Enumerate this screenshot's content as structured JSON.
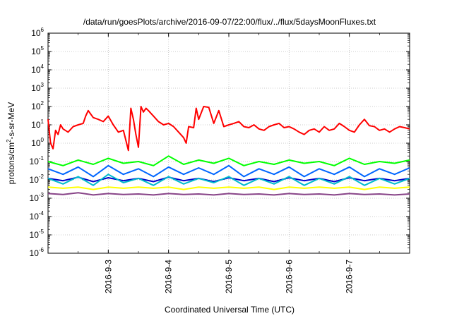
{
  "chart_data": {
    "type": "line",
    "title": "/data/run/goesPlots/archive/2016-09-07/22:00/flux/../flux/5daysMoonFluxes.txt",
    "xlabel": "Coordinated Universal Time (UTC)",
    "ylabel": "protons/cm2-s-sr-MeV",
    "ylabel_parts": {
      "before": "protons/cm",
      "sup": "2",
      "after": "-s-sr-MeV"
    },
    "yscale": "log",
    "ylim": [
      1e-06,
      1000000.0
    ],
    "xlim": [
      "2016-09-02 00:00",
      "2016-09-08 00:00"
    ],
    "xtick_labels": [
      "2016-9-3",
      "2016-9-4",
      "2016-9-5",
      "2016-9-6",
      "2016-9-7"
    ],
    "ytick_labels": [
      {
        "base": "10",
        "exp": "-6"
      },
      {
        "base": "10",
        "exp": "-5"
      },
      {
        "base": "10",
        "exp": "-4"
      },
      {
        "base": "10",
        "exp": "-3"
      },
      {
        "base": "10",
        "exp": "-2"
      },
      {
        "base": "10",
        "exp": "-1"
      },
      {
        "base": "10",
        "exp": "0"
      },
      {
        "base": "10",
        "exp": "1"
      },
      {
        "base": "10",
        "exp": "2"
      },
      {
        "base": "10",
        "exp": "3"
      },
      {
        "base": "10",
        "exp": "4"
      },
      {
        "base": "10",
        "exp": "5"
      },
      {
        "base": "10",
        "exp": "6"
      }
    ],
    "grid": true,
    "legend": "none",
    "series": [
      {
        "color": "#ff0000",
        "x": [
          "2016-09-02 00:00",
          "2016-09-02 01:00",
          "2016-09-02 02:00",
          "2016-09-02 03:00",
          "2016-09-02 04:00",
          "2016-09-02 05:00",
          "2016-09-02 06:00",
          "2016-09-02 08:00",
          "2016-09-02 10:00",
          "2016-09-02 12:00",
          "2016-09-02 14:00",
          "2016-09-02 15:00",
          "2016-09-02 16:00",
          "2016-09-02 18:00",
          "2016-09-02 20:00",
          "2016-09-02 22:00",
          "2016-09-03 00:00",
          "2016-09-03 02:00",
          "2016-09-03 04:00",
          "2016-09-03 06:00",
          "2016-09-03 08:00",
          "2016-09-03 09:00",
          "2016-09-03 10:00",
          "2016-09-03 11:00",
          "2016-09-03 12:00",
          "2016-09-03 13:00",
          "2016-09-03 14:00",
          "2016-09-03 15:00",
          "2016-09-03 16:00",
          "2016-09-03 18:00",
          "2016-09-03 20:00",
          "2016-09-03 22:00",
          "2016-09-04 00:00",
          "2016-09-04 02:00",
          "2016-09-04 04:00",
          "2016-09-04 06:00",
          "2016-09-04 07:00",
          "2016-09-04 08:00",
          "2016-09-04 10:00",
          "2016-09-04 11:00",
          "2016-09-04 12:00",
          "2016-09-04 14:00",
          "2016-09-04 16:00",
          "2016-09-04 18:00",
          "2016-09-04 20:00",
          "2016-09-04 22:00",
          "2016-09-05 00:00",
          "2016-09-05 02:00",
          "2016-09-05 04:00",
          "2016-09-05 06:00",
          "2016-09-05 08:00",
          "2016-09-05 10:00",
          "2016-09-05 12:00",
          "2016-09-05 14:00",
          "2016-09-05 16:00",
          "2016-09-05 18:00",
          "2016-09-05 20:00",
          "2016-09-05 22:00",
          "2016-09-06 00:00",
          "2016-09-06 02:00",
          "2016-09-06 04:00",
          "2016-09-06 06:00",
          "2016-09-06 08:00",
          "2016-09-06 10:00",
          "2016-09-06 12:00",
          "2016-09-06 14:00",
          "2016-09-06 16:00",
          "2016-09-06 18:00",
          "2016-09-06 20:00",
          "2016-09-06 22:00",
          "2016-09-07 00:00",
          "2016-09-07 02:00",
          "2016-09-07 04:00",
          "2016-09-07 06:00",
          "2016-09-07 08:00",
          "2016-09-07 10:00",
          "2016-09-07 12:00",
          "2016-09-07 14:00",
          "2016-09-07 16:00",
          "2016-09-07 18:00",
          "2016-09-07 20:00",
          "2016-09-07 22:00",
          "2016-09-08 00:00"
        ],
        "values": [
          20,
          1,
          0.5,
          5,
          3,
          10,
          6,
          4,
          8,
          10,
          12,
          30,
          60,
          25,
          20,
          15,
          30,
          10,
          4,
          5,
          0.4,
          80,
          20,
          3,
          0.6,
          100,
          50,
          80,
          60,
          30,
          15,
          10,
          12,
          8,
          4,
          2,
          1,
          8,
          7,
          80,
          20,
          100,
          90,
          12,
          60,
          8,
          10,
          12,
          15,
          8,
          7,
          10,
          6,
          5,
          8,
          10,
          12,
          7,
          8,
          6,
          4,
          3,
          5,
          6,
          4,
          8,
          5,
          6,
          12,
          8,
          5,
          4,
          10,
          20,
          9,
          8,
          5,
          6,
          4,
          6,
          8,
          7,
          6
        ]
      },
      {
        "color": "#00ff00",
        "x": [
          "2016-09-02 00:00",
          "2016-09-02 06:00",
          "2016-09-02 12:00",
          "2016-09-02 18:00",
          "2016-09-03 00:00",
          "2016-09-03 06:00",
          "2016-09-03 12:00",
          "2016-09-03 18:00",
          "2016-09-04 00:00",
          "2016-09-04 06:00",
          "2016-09-04 12:00",
          "2016-09-04 18:00",
          "2016-09-05 00:00",
          "2016-09-05 06:00",
          "2016-09-05 12:00",
          "2016-09-05 18:00",
          "2016-09-06 00:00",
          "2016-09-06 06:00",
          "2016-09-06 12:00",
          "2016-09-06 18:00",
          "2016-09-07 00:00",
          "2016-09-07 06:00",
          "2016-09-07 12:00",
          "2016-09-07 18:00",
          "2016-09-08 00:00"
        ],
        "values": [
          0.1,
          0.06,
          0.12,
          0.07,
          0.15,
          0.08,
          0.1,
          0.06,
          0.2,
          0.07,
          0.12,
          0.08,
          0.15,
          0.06,
          0.1,
          0.07,
          0.12,
          0.08,
          0.1,
          0.06,
          0.15,
          0.07,
          0.1,
          0.08,
          0.12
        ]
      },
      {
        "color": "#0066ff",
        "x": [
          "2016-09-02 00:00",
          "2016-09-02 06:00",
          "2016-09-02 12:00",
          "2016-09-02 18:00",
          "2016-09-03 00:00",
          "2016-09-03 06:00",
          "2016-09-03 12:00",
          "2016-09-03 18:00",
          "2016-09-04 00:00",
          "2016-09-04 06:00",
          "2016-09-04 12:00",
          "2016-09-04 18:00",
          "2016-09-05 00:00",
          "2016-09-05 06:00",
          "2016-09-05 12:00",
          "2016-09-05 18:00",
          "2016-09-06 00:00",
          "2016-09-06 06:00",
          "2016-09-06 12:00",
          "2016-09-06 18:00",
          "2016-09-07 00:00",
          "2016-09-07 06:00",
          "2016-09-07 12:00",
          "2016-09-07 18:00",
          "2016-09-08 00:00"
        ],
        "values": [
          0.04,
          0.02,
          0.05,
          0.015,
          0.06,
          0.02,
          0.04,
          0.015,
          0.05,
          0.02,
          0.045,
          0.02,
          0.06,
          0.015,
          0.04,
          0.02,
          0.05,
          0.015,
          0.04,
          0.02,
          0.05,
          0.015,
          0.04,
          0.02,
          0.045
        ]
      },
      {
        "color": "#00bbcc",
        "x": [
          "2016-09-02 00:00",
          "2016-09-02 06:00",
          "2016-09-02 12:00",
          "2016-09-02 18:00",
          "2016-09-03 00:00",
          "2016-09-03 06:00",
          "2016-09-03 12:00",
          "2016-09-03 18:00",
          "2016-09-04 00:00",
          "2016-09-04 06:00",
          "2016-09-04 12:00",
          "2016-09-04 18:00",
          "2016-09-05 00:00",
          "2016-09-05 06:00",
          "2016-09-05 12:00",
          "2016-09-05 18:00",
          "2016-09-06 00:00",
          "2016-09-06 06:00",
          "2016-09-06 12:00",
          "2016-09-06 18:00",
          "2016-09-07 00:00",
          "2016-09-07 06:00",
          "2016-09-07 12:00",
          "2016-09-07 18:00",
          "2016-09-08 00:00"
        ],
        "values": [
          0.012,
          0.006,
          0.015,
          0.005,
          0.02,
          0.007,
          0.012,
          0.005,
          0.015,
          0.006,
          0.012,
          0.007,
          0.015,
          0.005,
          0.012,
          0.006,
          0.015,
          0.005,
          0.012,
          0.006,
          0.015,
          0.005,
          0.012,
          0.006,
          0.012
        ]
      },
      {
        "color": "#0000cc",
        "x": [
          "2016-09-02 00:00",
          "2016-09-02 06:00",
          "2016-09-02 12:00",
          "2016-09-02 18:00",
          "2016-09-03 00:00",
          "2016-09-03 06:00",
          "2016-09-03 12:00",
          "2016-09-03 18:00",
          "2016-09-04 00:00",
          "2016-09-04 06:00",
          "2016-09-04 12:00",
          "2016-09-04 18:00",
          "2016-09-05 00:00",
          "2016-09-05 06:00",
          "2016-09-05 12:00",
          "2016-09-05 18:00",
          "2016-09-06 00:00",
          "2016-09-06 06:00",
          "2016-09-06 12:00",
          "2016-09-06 18:00",
          "2016-09-07 00:00",
          "2016-09-07 06:00",
          "2016-09-07 12:00",
          "2016-09-07 18:00",
          "2016-09-08 00:00"
        ],
        "values": [
          0.012,
          0.009,
          0.014,
          0.008,
          0.013,
          0.009,
          0.012,
          0.008,
          0.014,
          0.009,
          0.012,
          0.008,
          0.013,
          0.009,
          0.012,
          0.008,
          0.013,
          0.009,
          0.012,
          0.008,
          0.013,
          0.009,
          0.012,
          0.009,
          0.012
        ]
      },
      {
        "color": "#ffff00",
        "x": [
          "2016-09-02 00:00",
          "2016-09-02 06:00",
          "2016-09-02 12:00",
          "2016-09-02 18:00",
          "2016-09-03 00:00",
          "2016-09-03 06:00",
          "2016-09-03 12:00",
          "2016-09-03 18:00",
          "2016-09-04 00:00",
          "2016-09-04 06:00",
          "2016-09-04 12:00",
          "2016-09-04 18:00",
          "2016-09-05 00:00",
          "2016-09-05 06:00",
          "2016-09-05 12:00",
          "2016-09-05 18:00",
          "2016-09-06 00:00",
          "2016-09-06 06:00",
          "2016-09-06 12:00",
          "2016-09-06 18:00",
          "2016-09-07 00:00",
          "2016-09-07 06:00",
          "2016-09-07 12:00",
          "2016-09-07 18:00",
          "2016-09-08 00:00"
        ],
        "values": [
          0.004,
          0.0035,
          0.004,
          0.003,
          0.004,
          0.0035,
          0.004,
          0.0035,
          0.004,
          0.003,
          0.004,
          0.0035,
          0.004,
          0.0035,
          0.004,
          0.003,
          0.004,
          0.0035,
          0.004,
          0.0035,
          0.004,
          0.003,
          0.004,
          0.0035,
          0.004
        ]
      },
      {
        "color": "#884488",
        "x": [
          "2016-09-02 00:00",
          "2016-09-02 06:00",
          "2016-09-02 12:00",
          "2016-09-02 18:00",
          "2016-09-03 00:00",
          "2016-09-03 06:00",
          "2016-09-03 12:00",
          "2016-09-03 18:00",
          "2016-09-04 00:00",
          "2016-09-04 06:00",
          "2016-09-04 12:00",
          "2016-09-04 18:00",
          "2016-09-05 00:00",
          "2016-09-05 06:00",
          "2016-09-05 12:00",
          "2016-09-05 18:00",
          "2016-09-06 00:00",
          "2016-09-06 06:00",
          "2016-09-06 12:00",
          "2016-09-06 18:00",
          "2016-09-07 00:00",
          "2016-09-07 06:00",
          "2016-09-07 12:00",
          "2016-09-07 18:00",
          "2016-09-08 00:00"
        ],
        "values": [
          0.0018,
          0.0016,
          0.002,
          0.0015,
          0.0018,
          0.0016,
          0.0017,
          0.0015,
          0.0018,
          0.0016,
          0.0017,
          0.0015,
          0.0018,
          0.0016,
          0.0017,
          0.0015,
          0.0018,
          0.0016,
          0.0017,
          0.0015,
          0.0018,
          0.0016,
          0.0017,
          0.0015,
          0.0017
        ]
      }
    ]
  }
}
